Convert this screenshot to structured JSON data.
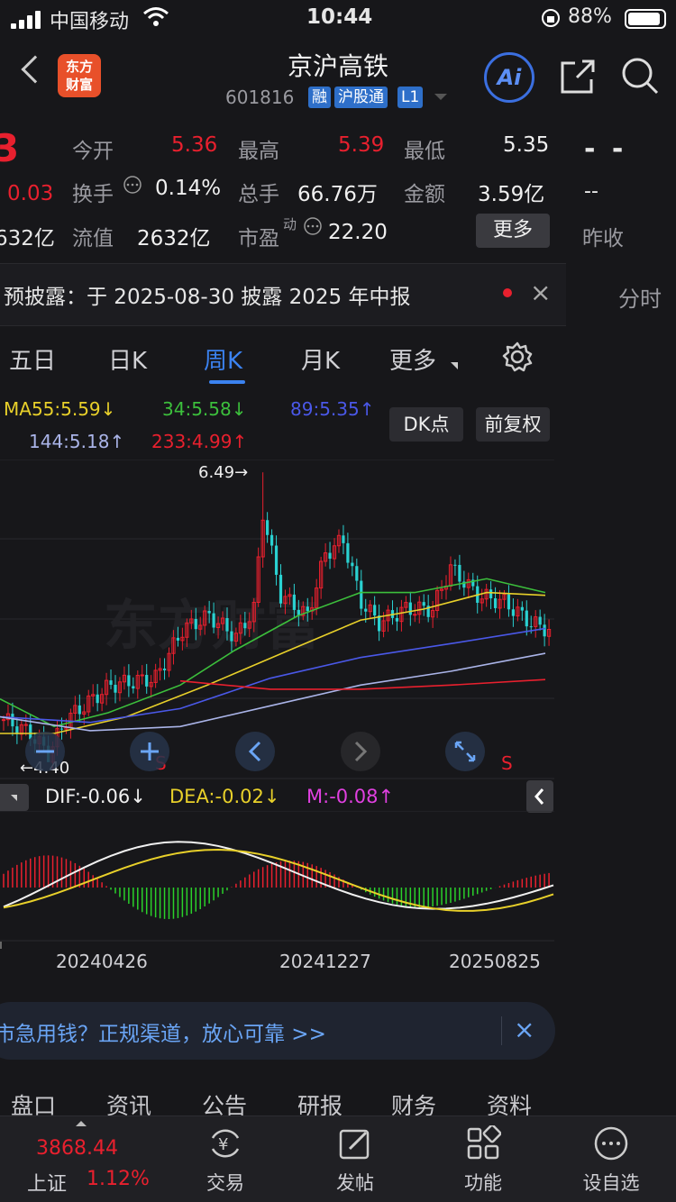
{
  "status_bar": {
    "carrier": "中国移动",
    "time": "10:44",
    "battery": "88%"
  },
  "header": {
    "title": "京沪高铁",
    "code": "601816",
    "tags": [
      "融",
      "沪股通",
      "L1"
    ],
    "logo_lines": [
      "东方",
      "财富"
    ],
    "ai_label": "Ai"
  },
  "quote": {
    "price_partial": "3",
    "change_partial": "0.03",
    "mcap_partial": "632亿",
    "cells": [
      {
        "label": "今开",
        "value": "5.36",
        "color": "red"
      },
      {
        "label": "最高",
        "value": "5.39",
        "color": "red"
      },
      {
        "label": "最低",
        "value": "5.35",
        "color": "white"
      },
      {
        "label": "换手",
        "value": "0.14%",
        "color": "white"
      },
      {
        "label": "总手",
        "value": "66.76万",
        "color": "white"
      },
      {
        "label": "金额",
        "value": "3.59亿",
        "color": "white"
      },
      {
        "label": "流值",
        "value": "2632亿",
        "color": "white"
      },
      {
        "label": "市盈",
        "value": "22.20",
        "color": "white"
      }
    ],
    "pe_sup": "动",
    "more_label": "更多",
    "right_dash1": "- -",
    "right_dash2": "--",
    "prev_close_label": "昨收"
  },
  "notice": {
    "text": "预披露：于 2025-08-30 披露 2025 年中报",
    "close": "×"
  },
  "side_tab": "分时",
  "tabs": [
    {
      "label": "五日",
      "active": false
    },
    {
      "label": "日K",
      "active": false
    },
    {
      "label": "周K",
      "active": true
    },
    {
      "label": "月K",
      "active": false
    },
    {
      "label": "更多",
      "active": false
    }
  ],
  "ma_legend": [
    {
      "text": "MA55:5.59↓",
      "color": "#e8d02a"
    },
    {
      "text": "34:5.58↓",
      "color": "#3cbf3c"
    },
    {
      "text": "89:5.35↑",
      "color": "#4a58e8"
    },
    {
      "text": "144:5.18↑",
      "color": "#aab4e8"
    },
    {
      "text": "233:4.99↑",
      "color": "#e8202e"
    }
  ],
  "buttons": {
    "dk": "DK点",
    "fq": "前复权"
  },
  "chart": {
    "high_label": "6.49→",
    "low_label": "←4.40",
    "signal_label": "S",
    "watermark": "东方财富"
  },
  "chart_data": {
    "type": "candlestick",
    "interval": "weekly",
    "y_marks": {
      "high": 6.49,
      "low": 4.4
    },
    "ma": {
      "MA55": 5.59,
      "MA34": 5.58,
      "MA89": 5.35,
      "MA144": 5.18,
      "MA233": 4.99
    },
    "macd": {
      "DIF": -0.06,
      "DEA": -0.02,
      "M": -0.08
    },
    "x_ticks": [
      "20240426",
      "20241227",
      "20250825"
    ]
  },
  "macd_legend": [
    {
      "text": "DIF:-0.06↓",
      "color": "#f0f0f0"
    },
    {
      "text": "DEA:-0.02↓",
      "color": "#e8d02a"
    },
    {
      "text": "M:-0.08↑",
      "color": "#e040e0"
    }
  ],
  "ad": {
    "text": "市急用钱？正规渠道，放心可靠 >>",
    "close": "×"
  },
  "section_tabs": [
    "盘口",
    "资讯",
    "公告",
    "研报",
    "财务",
    "资料"
  ],
  "bottom_nav": {
    "index_value": "3868.44",
    "index_name": "上证",
    "index_pct": "1.12%",
    "items": [
      "交易",
      "发帖",
      "功能",
      "设自选"
    ]
  },
  "colors": {
    "up": "#e8202e",
    "down": "#2ad1d1",
    "accent": "#3b82f0",
    "bg": "#17171a"
  }
}
